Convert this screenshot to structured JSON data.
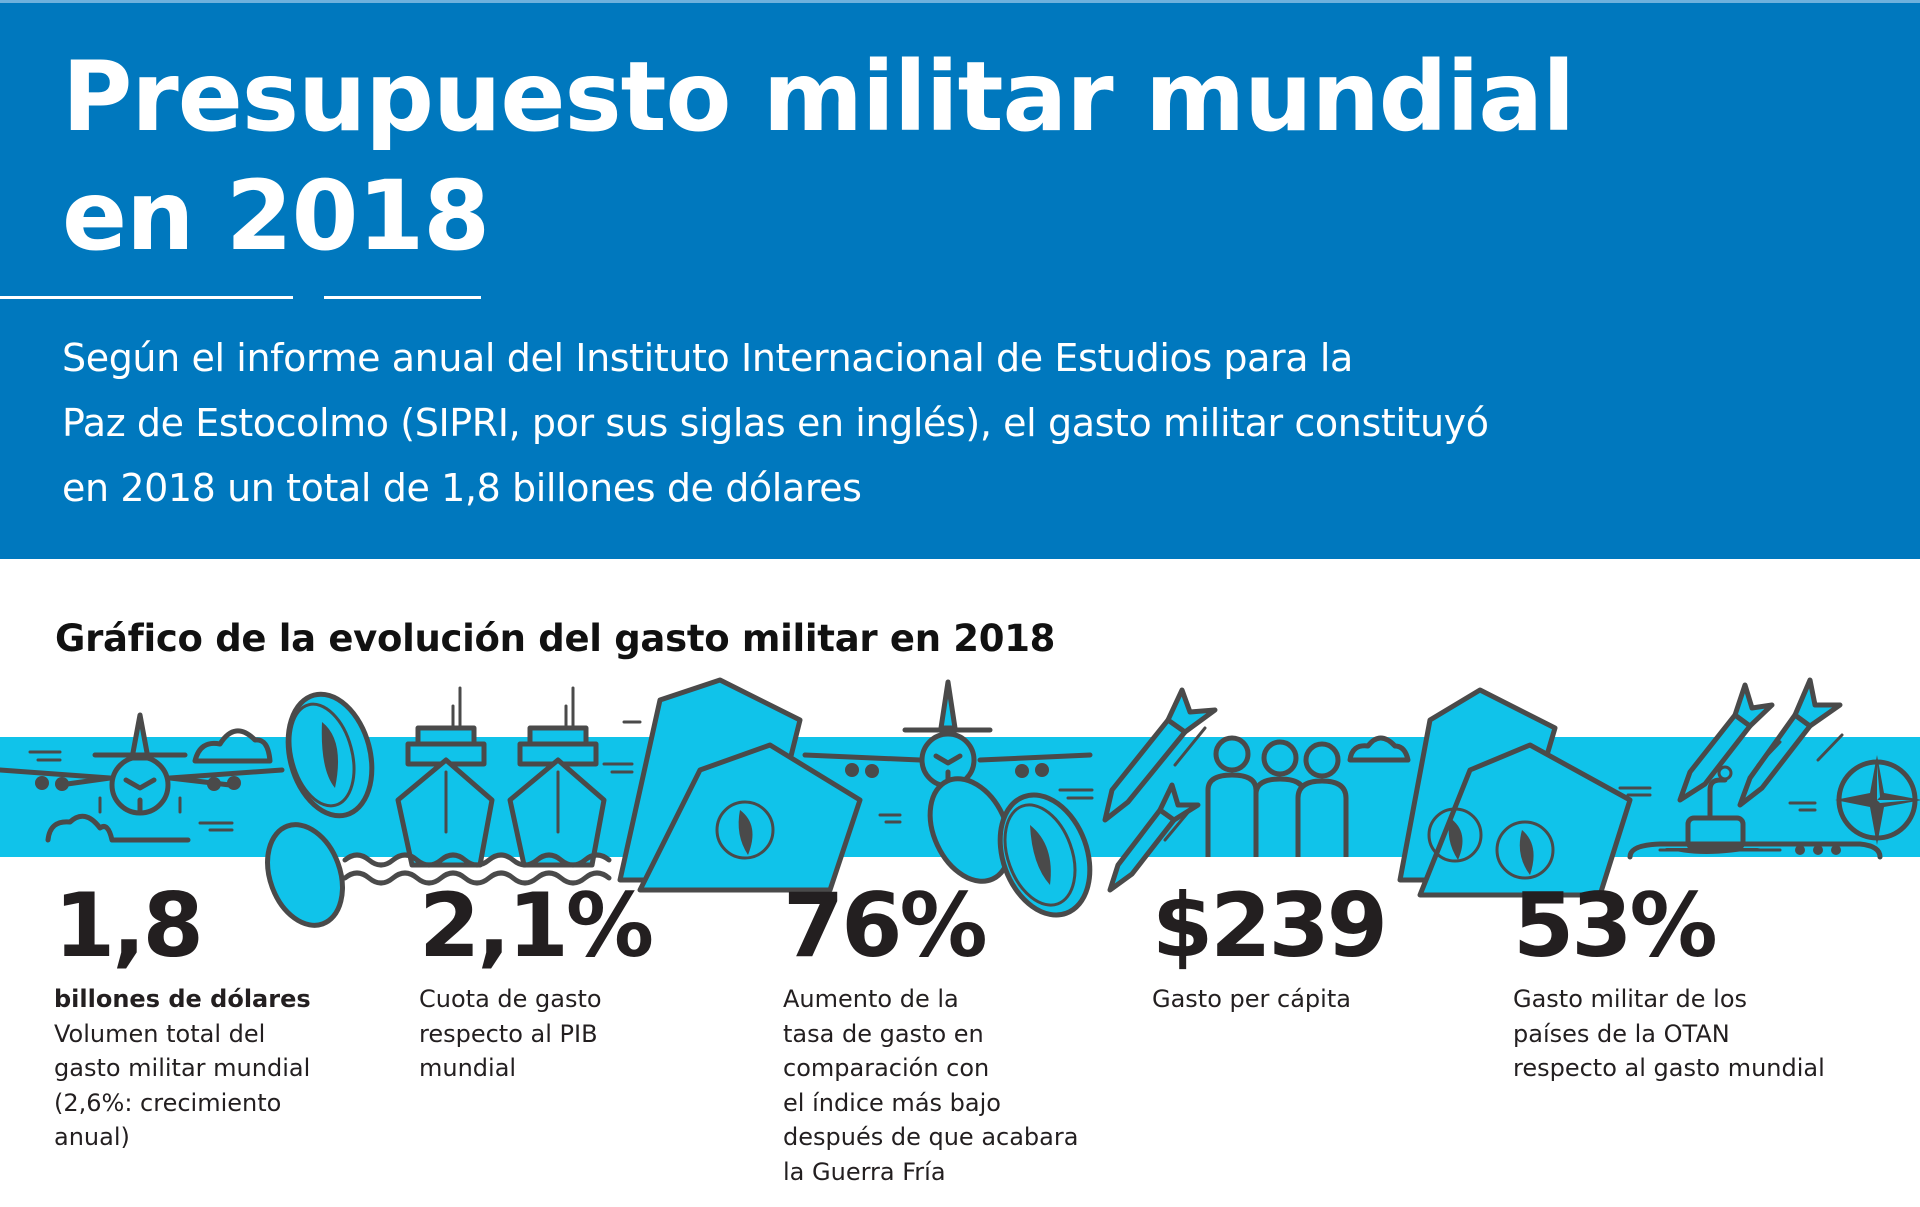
{
  "header": {
    "title_lines": [
      "Presupuesto militar mundial",
      "en 2018"
    ],
    "subtitle_lines": [
      "Según el informe anual del Instituto Internacional de Estudios para la",
      "Paz de Estocolmo (SIPRI, por sus siglas en inglés), el gasto militar constituyó",
      "en 2018 un total de 1,8 billones de dólares"
    ]
  },
  "section": {
    "heading": "Gráfico de la evolución del gasto militar en 2018"
  },
  "illustration": {
    "icons": [
      "airplane-icon",
      "cloud-icon",
      "coin-icon",
      "ship-icon",
      "banknote-icon",
      "missile-icon",
      "people-icon",
      "submarine-icon",
      "nato-compass-icon"
    ]
  },
  "stats": [
    {
      "value": "1,8",
      "unit": "billones de dólares",
      "lines": [
        "Volumen total del",
        "gasto militar mundial",
        "(2,6%: crecimiento",
        "anual)"
      ]
    },
    {
      "value": "2,1%",
      "lines": [
        "Cuota de gasto",
        "respecto al PIB",
        "mundial"
      ]
    },
    {
      "value": "76%",
      "lines": [
        "Aumento de la",
        "tasa de gasto en",
        "comparación con",
        "el índice más bajo",
        "después de que acabara",
        "la Guerra Fría"
      ]
    },
    {
      "value": "$239",
      "lines": [
        "Gasto per cápita"
      ]
    },
    {
      "value": "53%",
      "lines": [
        "Gasto militar de los",
        "países de la OTAN",
        "respecto al gasto mundial"
      ]
    }
  ],
  "colors": {
    "header_blue": "#0078be",
    "band_cyan": "#10c3ea",
    "icon_ink": "#4a4a4a",
    "text_dark": "#231f20"
  }
}
